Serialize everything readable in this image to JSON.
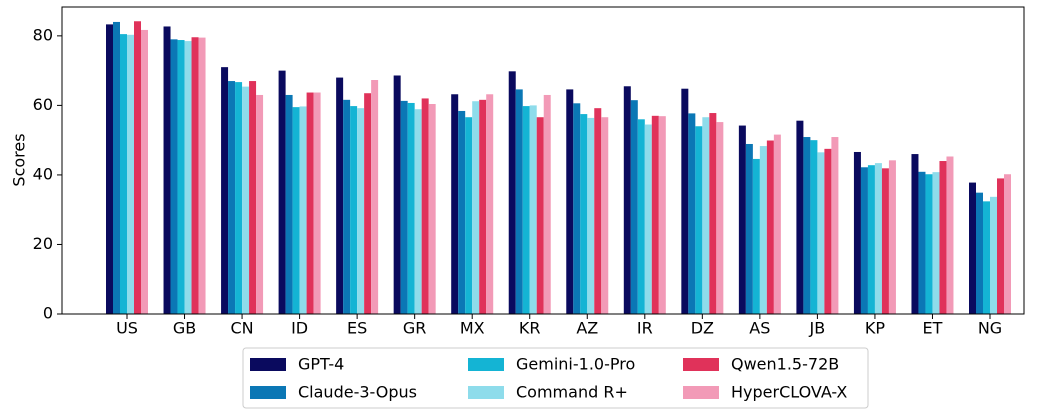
{
  "chart_data": {
    "type": "bar",
    "y_label": "Scores",
    "categories": [
      "US",
      "GB",
      "CN",
      "ID",
      "ES",
      "GR",
      "MX",
      "KR",
      "AZ",
      "IR",
      "DZ",
      "AS",
      "JB",
      "KP",
      "ET",
      "NG"
    ],
    "series": [
      {
        "name": "GPT-4",
        "color": "#0a0a5e",
        "values": [
          83.3,
          82.7,
          71,
          70,
          68,
          68.6,
          63.2,
          69.8,
          64.6,
          65.5,
          64.8,
          54.2,
          55.6,
          46.6,
          46,
          37.8
        ]
      },
      {
        "name": "Claude-3-Opus",
        "color": "#0b77b5",
        "values": [
          84,
          79,
          67,
          63,
          61.6,
          61.3,
          58.4,
          64.6,
          60.6,
          61.5,
          57.7,
          48.9,
          50.9,
          42.2,
          40.9,
          34.9
        ]
      },
      {
        "name": "Gemini-1.0-Pro",
        "color": "#14b4d4",
        "values": [
          80.5,
          78.8,
          66.7,
          59.5,
          59.8,
          60.7,
          56.6,
          59.8,
          57.5,
          56,
          54,
          44.6,
          50,
          42.8,
          40.2,
          32.4
        ]
      },
      {
        "name": "Command R+",
        "color": "#8edceb",
        "values": [
          80.3,
          78.5,
          65.4,
          59.7,
          59.2,
          58.9,
          61.2,
          60,
          56.4,
          54.5,
          56.6,
          48.3,
          46.5,
          43.4,
          40.8,
          33.7
        ]
      },
      {
        "name": "Qwen1.5-72B",
        "color": "#e0325a",
        "values": [
          84.2,
          79.6,
          67,
          63.7,
          63.5,
          62,
          61.6,
          56.6,
          59.2,
          57,
          57.8,
          49.9,
          47.5,
          41.9,
          44,
          39
        ]
      },
      {
        "name": "HyperCLOVA-X",
        "color": "#f29ab7",
        "values": [
          81.7,
          79.5,
          63,
          63.7,
          67.3,
          60.4,
          63.2,
          63,
          56.6,
          56.9,
          55.2,
          51.6,
          50.9,
          44.2,
          45.3,
          40.2
        ]
      }
    ],
    "ylim": [
      0,
      88.3
    ],
    "yticks": [
      0,
      20,
      40,
      60,
      80
    ],
    "legend": "bottom"
  }
}
